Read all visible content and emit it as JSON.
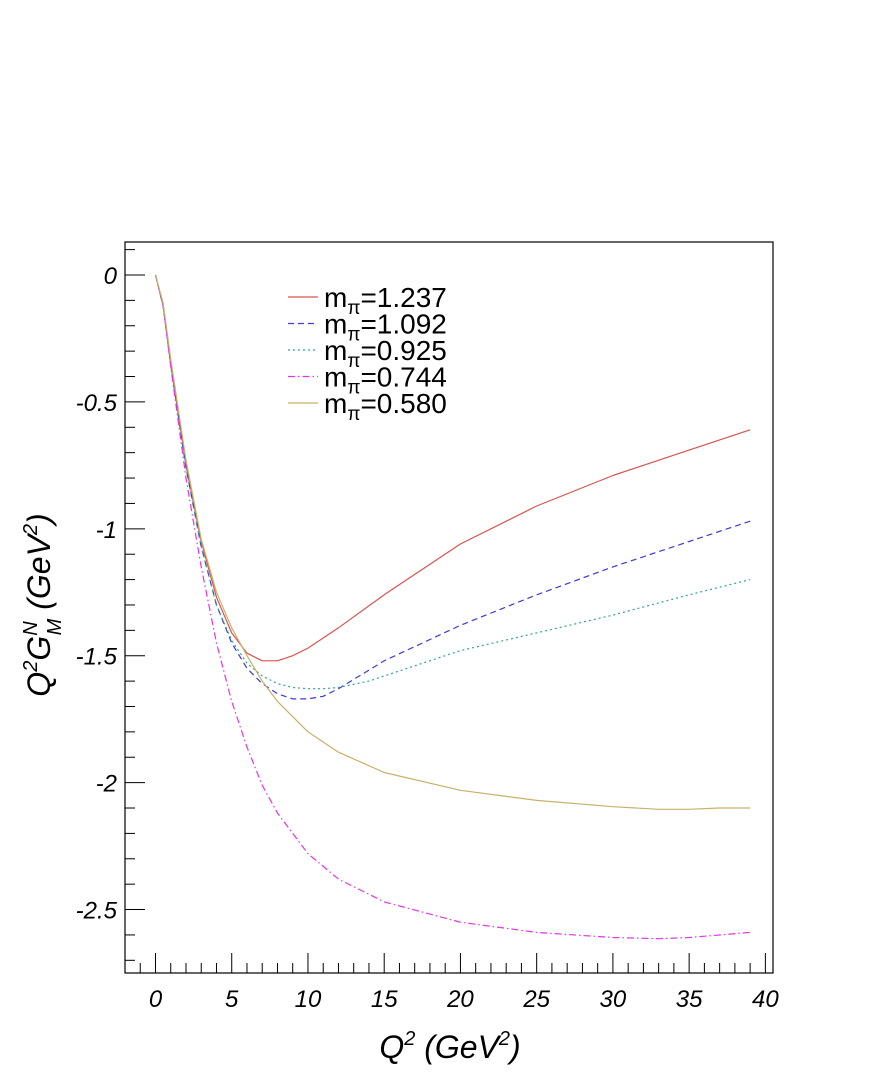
{
  "chart_data": {
    "type": "line",
    "xlabel": "Q^2 (GeV^2)",
    "ylabel": "Q^2 G_M^N (GeV^2)",
    "xlim": [
      -2,
      40.5
    ],
    "ylim": [
      -2.75,
      0.13
    ],
    "x_ticks": [
      "0",
      "5",
      "10",
      "15",
      "20",
      "25",
      "30",
      "35",
      "40"
    ],
    "y_ticks": [
      "0",
      "-0.5",
      "-1",
      "-1.5",
      "-2",
      "-2.5"
    ],
    "grid": false,
    "legend_position": "top-center",
    "series": [
      {
        "name": "mπ=1.237",
        "color": "#d9534f",
        "dash": "solid",
        "x": [
          0,
          0.5,
          1,
          2,
          3,
          4,
          5,
          6,
          7,
          8,
          9,
          10,
          12,
          15,
          20,
          25,
          30,
          35,
          39
        ],
        "y": [
          0,
          -0.12,
          -0.35,
          -0.75,
          -1.05,
          -1.27,
          -1.41,
          -1.49,
          -1.52,
          -1.52,
          -1.5,
          -1.47,
          -1.39,
          -1.26,
          -1.06,
          -0.91,
          -0.79,
          -0.69,
          -0.61
        ]
      },
      {
        "name": "mπ=1.092",
        "color": "#3b3bd6",
        "dash": "dashed",
        "x": [
          0,
          0.5,
          1,
          2,
          3,
          4,
          5,
          6,
          7,
          8,
          9,
          10,
          11,
          12,
          15,
          20,
          25,
          30,
          35,
          39
        ],
        "y": [
          0,
          -0.12,
          -0.35,
          -0.76,
          -1.07,
          -1.3,
          -1.45,
          -1.55,
          -1.61,
          -1.65,
          -1.67,
          -1.67,
          -1.66,
          -1.63,
          -1.52,
          -1.38,
          -1.26,
          -1.15,
          -1.05,
          -0.97
        ]
      },
      {
        "name": "mπ=0.925",
        "color": "#2ea88a",
        "dash": "dotted",
        "x": [
          0,
          0.5,
          1,
          2,
          3,
          4,
          5,
          6,
          7,
          8,
          9,
          10,
          11,
          12,
          14,
          15,
          20,
          25,
          30,
          35,
          39
        ],
        "y": [
          0,
          -0.12,
          -0.35,
          -0.76,
          -1.07,
          -1.3,
          -1.44,
          -1.53,
          -1.58,
          -1.61,
          -1.625,
          -1.63,
          -1.63,
          -1.625,
          -1.6,
          -1.58,
          -1.48,
          -1.41,
          -1.34,
          -1.26,
          -1.2
        ]
      },
      {
        "name": "mπ=0.744",
        "color": "#e633e6",
        "dash": "dashdot",
        "x": [
          0,
          0.5,
          1,
          2,
          3,
          4,
          5,
          6,
          7,
          8,
          10,
          12,
          15,
          20,
          25,
          30,
          33,
          35,
          39
        ],
        "y": [
          0,
          -0.12,
          -0.36,
          -0.8,
          -1.15,
          -1.45,
          -1.68,
          -1.86,
          -2.01,
          -2.12,
          -2.28,
          -2.38,
          -2.47,
          -2.55,
          -2.59,
          -2.61,
          -2.615,
          -2.61,
          -2.59
        ]
      },
      {
        "name": "mπ=0.580",
        "color": "#c9b06a",
        "dash": "solid",
        "x": [
          0,
          0.5,
          1,
          2,
          3,
          4,
          5,
          6,
          7,
          8,
          10,
          12,
          15,
          20,
          25,
          30,
          33,
          35,
          37,
          39
        ],
        "y": [
          0,
          -0.11,
          -0.33,
          -0.73,
          -1.04,
          -1.25,
          -1.39,
          -1.5,
          -1.6,
          -1.68,
          -1.8,
          -1.88,
          -1.96,
          -2.03,
          -2.07,
          -2.095,
          -2.105,
          -2.105,
          -2.1,
          -2.1
        ]
      }
    ],
    "axis_title_x": {
      "base": "Q",
      "sup": "2",
      "rest": " (GeV",
      "sup2": "2",
      "close": ")"
    },
    "axis_title_y": {
      "base": "Q",
      "sup": "2",
      "mid": "G",
      "sup_n": "N",
      "sub_m": "M",
      "rest": " (GeV",
      "sup2": "2",
      "close": ")"
    },
    "legend_prefix": "m",
    "legend_sub": "π",
    "legend_values": [
      "=1.237",
      "=1.092",
      "=0.925",
      "=0.744",
      "=0.580"
    ]
  }
}
